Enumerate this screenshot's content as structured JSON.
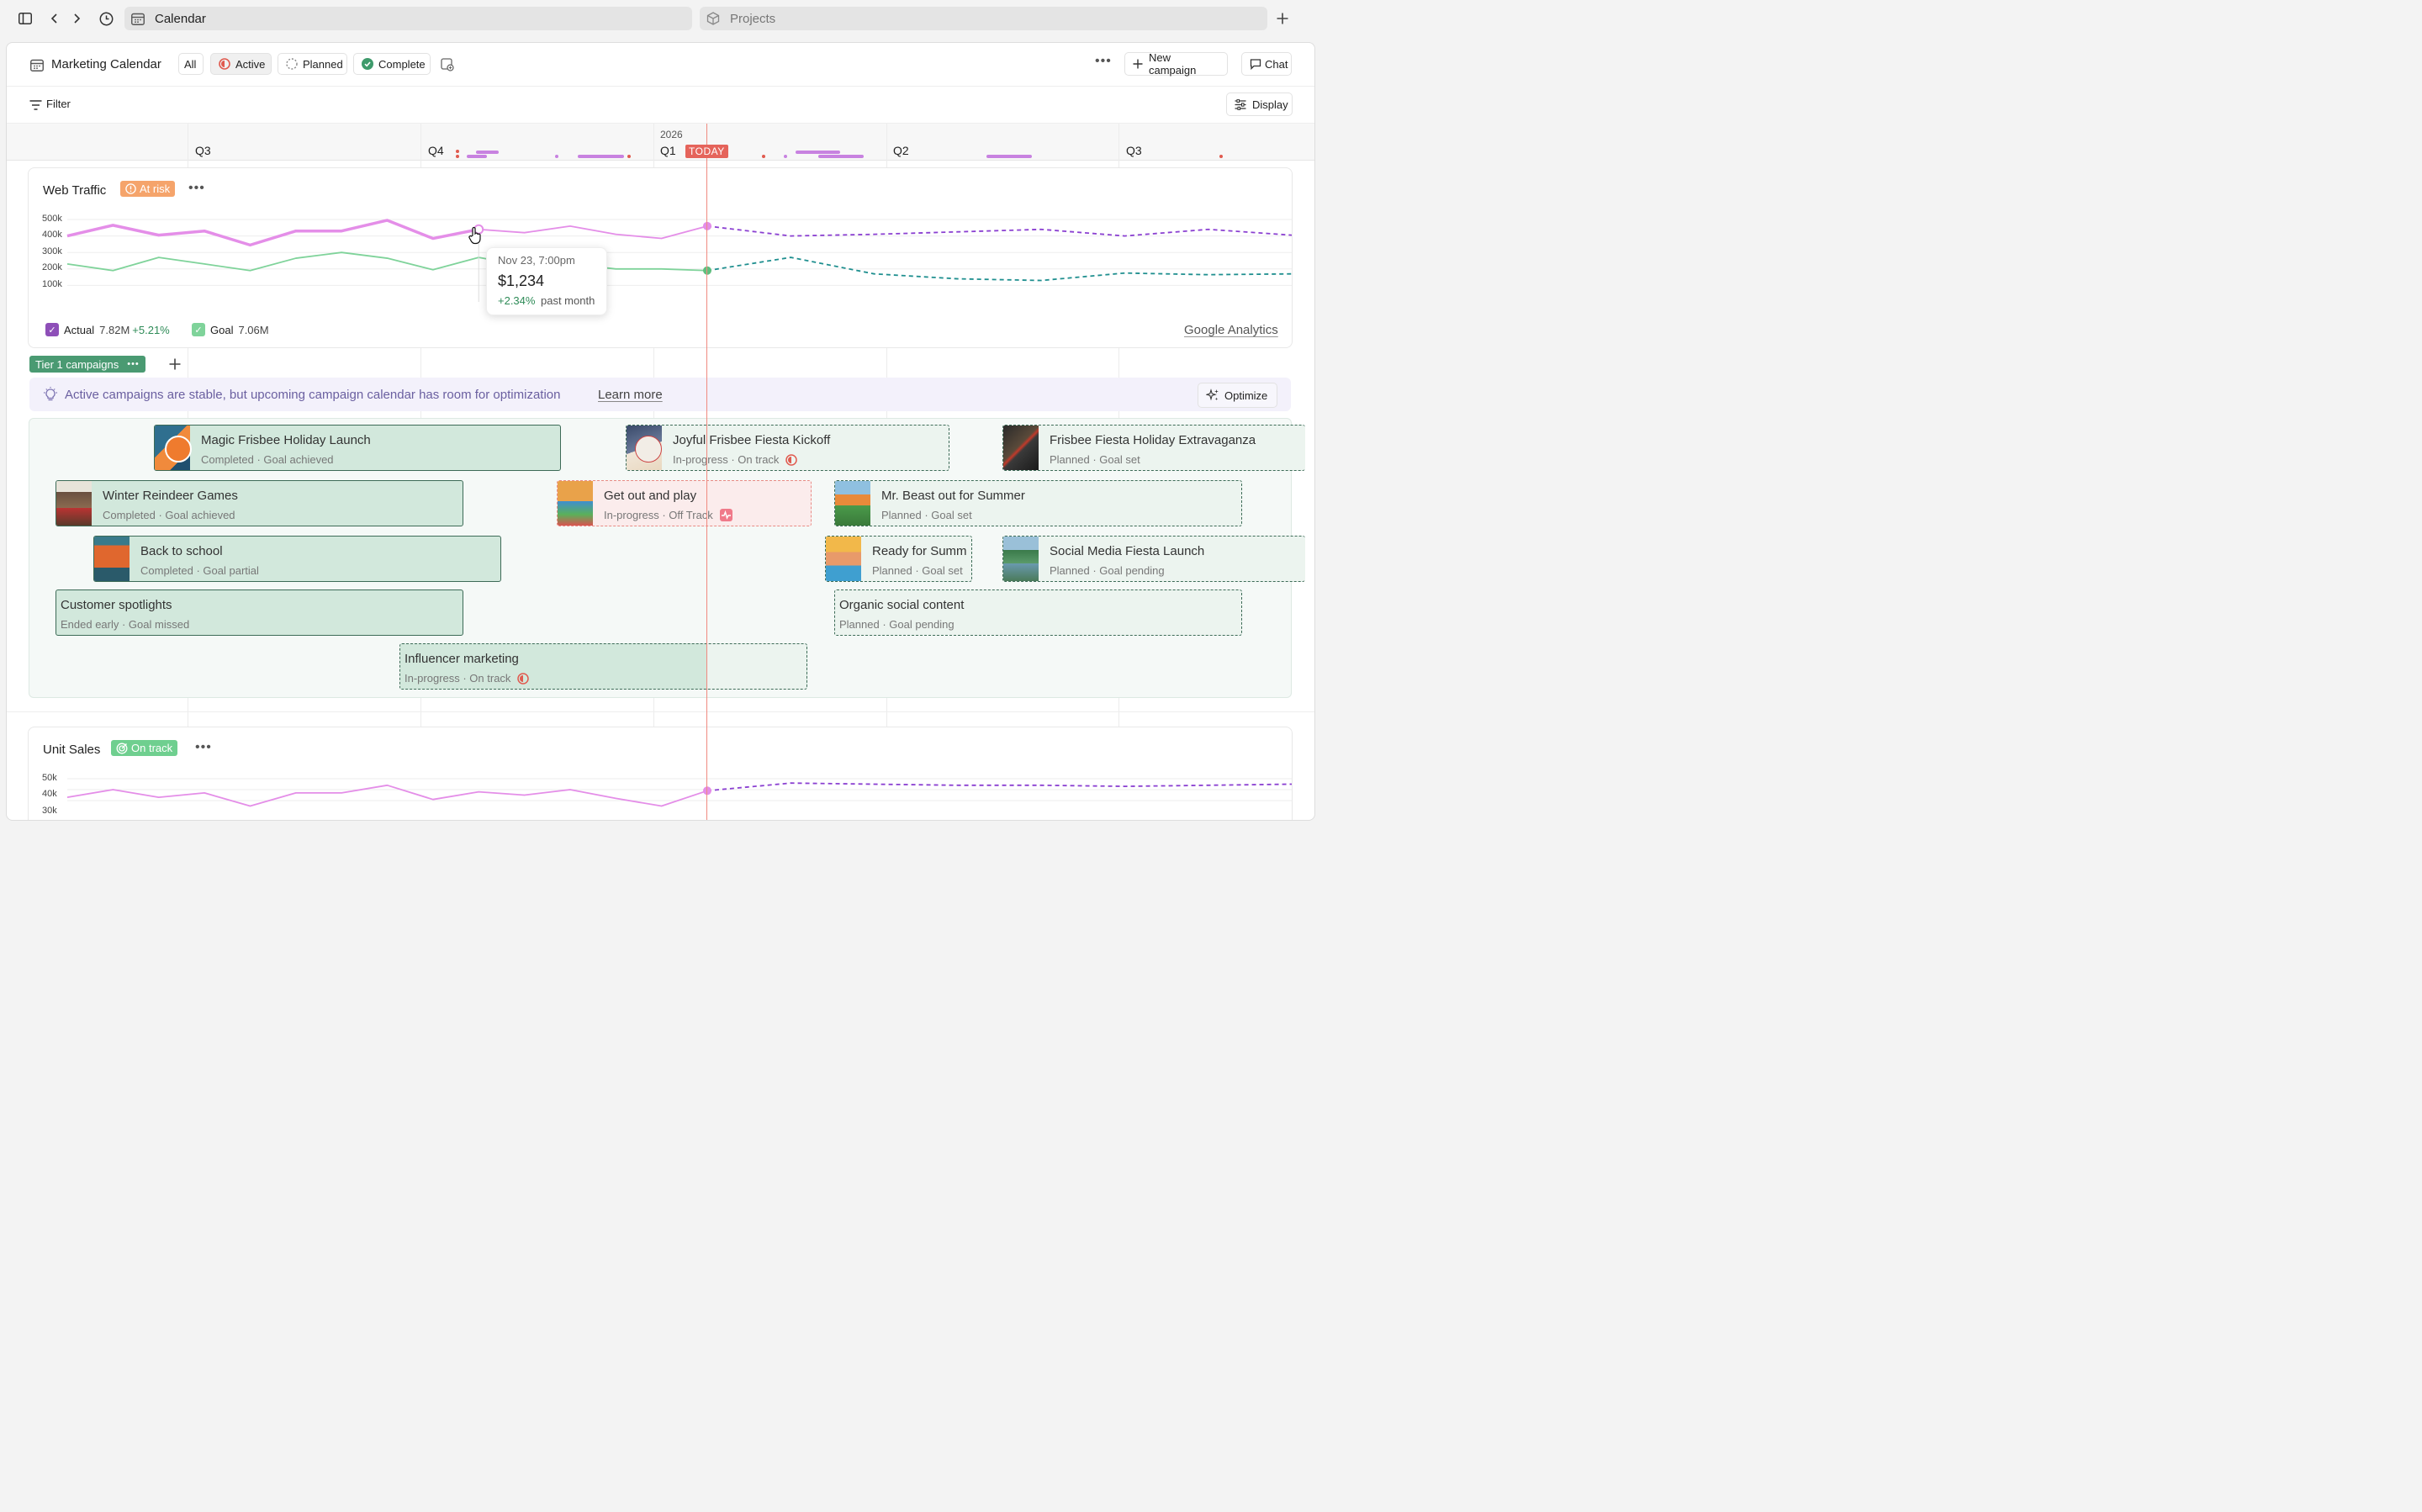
{
  "browser": {
    "active_tab": "Calendar",
    "inactive_tab": "Projects"
  },
  "header": {
    "title": "Marketing Calendar",
    "filters": [
      "All",
      "Active",
      "Planned",
      "Complete"
    ],
    "new_campaign": "New campaign",
    "chat": "Chat"
  },
  "subbar": {
    "filter": "Filter",
    "display": "Display"
  },
  "timeline": {
    "year": "2026",
    "quarters": [
      "Q3",
      "Q4",
      "Q1",
      "Q2",
      "Q3"
    ],
    "today": "TODAY"
  },
  "web_traffic": {
    "title": "Web Traffic",
    "status": "At risk",
    "yticks": [
      "500k",
      "400k",
      "300k",
      "200k",
      "100k"
    ],
    "tooltip": {
      "date": "Nov 23, 7:00pm",
      "value": "$1,234",
      "delta": "+2.34%",
      "delta_label": "past month"
    },
    "legend_actual": "Actual",
    "legend_actual_value": "7.82M",
    "legend_actual_delta": "+5.21%",
    "legend_goal": "Goal",
    "legend_goal_value": "7.06M",
    "source": "Google Analytics",
    "colors": {
      "actual": "#e48ee8",
      "goal": "#7fd39a",
      "forecast_actual": "#8a3fd1",
      "forecast_goal": "#1f8f8f"
    }
  },
  "chart_data": [
    {
      "type": "line",
      "title": "Web Traffic",
      "xlabel": "",
      "ylabel": "",
      "ylim": [
        0,
        500000
      ],
      "series": [
        {
          "name": "Actual",
          "values": [
            400000,
            465000,
            405000,
            430000,
            345000,
            430000,
            430000,
            495000,
            385000,
            440000,
            420000,
            460000,
            410000,
            385000,
            460000
          ]
        },
        {
          "name": "Goal",
          "values": [
            230000,
            190000,
            270000,
            230000,
            190000,
            265000,
            300000,
            265000,
            195000,
            270000,
            220000,
            230000,
            200000,
            200000,
            190000
          ]
        }
      ],
      "forecast": {
        "actual": [
          460000,
          400000,
          410000,
          425000,
          440000,
          400000,
          440000,
          405000
        ],
        "goal": [
          190000,
          270000,
          170000,
          140000,
          130000,
          175000,
          165000,
          170000
        ]
      }
    },
    {
      "type": "line",
      "title": "Unit Sales",
      "xlabel": "",
      "ylabel": "",
      "ylim": [
        20000,
        50000
      ],
      "series": [
        {
          "name": "Actual",
          "values": [
            33000,
            40000,
            33000,
            37000,
            25000,
            37000,
            37000,
            44000,
            31000,
            38000,
            35000,
            40000,
            32000,
            25000,
            39000
          ]
        }
      ],
      "forecast": {
        "actual": [
          39000,
          46000,
          45000,
          44000,
          44000,
          43000,
          44000,
          45000
        ]
      }
    }
  ],
  "tier": {
    "label": "Tier 1 campaigns"
  },
  "insight": {
    "text": "Active campaigns are stable, but upcoming campaign calendar has room for optimization",
    "learn_more": "Learn more",
    "optimize": "Optimize"
  },
  "campaigns": [
    {
      "name": "Magic Frisbee Holiday Launch",
      "status": "Completed · Goal achieved"
    },
    {
      "name": "Joyful Frisbee Fiesta Kickoff",
      "status": "In-progress · On track"
    },
    {
      "name": "Frisbee Fiesta Holiday Extravaganza",
      "status": "Planned · Goal set"
    },
    {
      "name": "Winter Reindeer Games",
      "status": "Completed · Goal achieved"
    },
    {
      "name": "Get out and play",
      "status": "In-progress · Off Track"
    },
    {
      "name": "Mr. Beast out for Summer",
      "status": "Planned · Goal set"
    },
    {
      "name": "Back to school",
      "status": "Completed · Goal partial"
    },
    {
      "name": "Ready for Summ",
      "status": "Planned · Goal set"
    },
    {
      "name": "Social Media Fiesta Launch",
      "status": "Planned · Goal pending"
    },
    {
      "name": "Customer spotlights",
      "status": "Ended early · Goal missed"
    },
    {
      "name": "Organic social content",
      "status": "Planned · Goal pending"
    },
    {
      "name": "Influencer marketing",
      "status": "In-progress · On track"
    }
  ],
  "unit_sales": {
    "title": "Unit Sales",
    "status": "On track",
    "yticks": [
      "50k",
      "40k",
      "30k"
    ]
  }
}
